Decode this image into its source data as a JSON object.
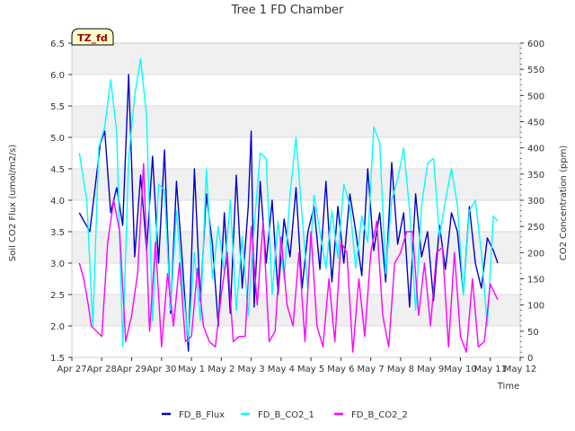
{
  "chart_data": {
    "type": "line",
    "title": "Tree 1 FD Chamber",
    "xlabel": "Time",
    "ylabel": "Soil CO2 Flux (umol/m2/s)",
    "y2label": "CO2 Concentration (ppm)",
    "site_label": "TZ_fd",
    "xlim": [
      0,
      15
    ],
    "ylim": [
      1.5,
      6.5
    ],
    "y2lim": [
      0,
      600
    ],
    "x_ticks": [
      {
        "value": 0,
        "label": "Apr 27"
      },
      {
        "value": 1,
        "label": "Apr 28"
      },
      {
        "value": 2,
        "label": "Apr 29"
      },
      {
        "value": 3,
        "label": "Apr 30"
      },
      {
        "value": 4,
        "label": "May 1"
      },
      {
        "value": 5,
        "label": "May 2"
      },
      {
        "value": 6,
        "label": "May 3"
      },
      {
        "value": 7,
        "label": "May 4"
      },
      {
        "value": 8,
        "label": "May 5"
      },
      {
        "value": 9,
        "label": "May 6"
      },
      {
        "value": 10,
        "label": "May 7"
      },
      {
        "value": 11,
        "label": "May 8"
      },
      {
        "value": 12,
        "label": "May 9"
      },
      {
        "value": 13,
        "label": "May 10"
      },
      {
        "value": 14,
        "label": "May 11"
      },
      {
        "value": 15,
        "label": "May 12"
      }
    ],
    "y_ticks": [
      "1.5",
      "2.0",
      "2.5",
      "3.0",
      "3.5",
      "4.0",
      "4.5",
      "5.0",
      "5.5",
      "6.0",
      "6.5"
    ],
    "y2_ticks": [
      "0",
      "50",
      "100",
      "150",
      "200",
      "250",
      "300",
      "350",
      "400",
      "450",
      "500",
      "550",
      "600"
    ],
    "legend_position": "bottom-center",
    "series": [
      {
        "name": "FD_B_Flux",
        "axis": "left",
        "color": "#0000cc",
        "x": [
          0.25,
          0.6,
          0.75,
          0.95,
          1.1,
          1.3,
          1.5,
          1.7,
          1.9,
          2.1,
          2.3,
          2.5,
          2.7,
          2.9,
          3.1,
          3.3,
          3.5,
          3.7,
          3.9,
          4.1,
          4.3,
          4.5,
          4.7,
          4.9,
          5.1,
          5.3,
          5.5,
          5.7,
          5.9,
          6.0,
          6.1,
          6.3,
          6.5,
          6.7,
          6.9,
          7.1,
          7.3,
          7.5,
          7.7,
          7.9,
          8.1,
          8.3,
          8.5,
          8.7,
          8.9,
          9.1,
          9.3,
          9.5,
          9.7,
          9.9,
          10.1,
          10.3,
          10.5,
          10.7,
          10.9,
          11.1,
          11.3,
          11.5,
          11.7,
          11.9,
          12.1,
          12.3,
          12.5,
          12.7,
          12.9,
          13.1,
          13.3,
          13.5,
          13.7,
          13.9,
          14.1,
          14.25
        ],
        "values": [
          3.8,
          3.5,
          4.1,
          4.9,
          5.1,
          3.8,
          4.2,
          3.6,
          6.0,
          3.1,
          4.4,
          3.2,
          4.7,
          3.0,
          4.8,
          2.2,
          4.3,
          3.0,
          1.6,
          4.5,
          2.4,
          4.1,
          3.3,
          2.0,
          3.8,
          2.2,
          4.4,
          2.6,
          3.9,
          5.1,
          2.3,
          4.3,
          3.0,
          4.0,
          2.5,
          3.7,
          3.1,
          4.2,
          2.6,
          3.5,
          3.9,
          2.9,
          4.3,
          2.7,
          3.9,
          3.0,
          4.1,
          3.5,
          2.8,
          4.5,
          3.2,
          3.8,
          2.7,
          4.6,
          3.3,
          3.8,
          2.3,
          4.1,
          3.1,
          3.5,
          2.4,
          3.6,
          2.9,
          3.8,
          3.5,
          2.5,
          3.9,
          3.0,
          2.6,
          3.4,
          3.2,
          3.0
        ]
      },
      {
        "name": "FD_B_CO2_1",
        "axis": "right",
        "color": "#00ffff",
        "x": [
          0.25,
          0.5,
          0.7,
          0.9,
          1.1,
          1.3,
          1.5,
          1.7,
          1.9,
          2.1,
          2.3,
          2.5,
          2.7,
          2.9,
          3.1,
          3.3,
          3.5,
          3.7,
          3.9,
          4.1,
          4.3,
          4.5,
          4.7,
          4.9,
          5.1,
          5.3,
          5.5,
          5.7,
          5.9,
          6.1,
          6.3,
          6.5,
          6.7,
          6.9,
          7.1,
          7.3,
          7.5,
          7.7,
          7.9,
          8.1,
          8.3,
          8.5,
          8.7,
          8.9,
          9.1,
          9.3,
          9.5,
          9.7,
          9.9,
          10.1,
          10.3,
          10.5,
          10.7,
          10.9,
          11.1,
          11.3,
          11.5,
          11.7,
          11.9,
          12.1,
          12.3,
          12.5,
          12.7,
          12.9,
          13.1,
          13.3,
          13.5,
          13.7,
          13.9,
          14.1,
          14.25
        ],
        "values": [
          390,
          300,
          60,
          400,
          440,
          530,
          430,
          20,
          380,
          500,
          570,
          460,
          70,
          330,
          320,
          90,
          280,
          140,
          30,
          200,
          70,
          360,
          150,
          250,
          160,
          300,
          90,
          230,
          80,
          250,
          390,
          380,
          120,
          260,
          150,
          310,
          420,
          270,
          130,
          310,
          240,
          170,
          280,
          190,
          330,
          290,
          170,
          270,
          220,
          440,
          410,
          160,
          300,
          340,
          400,
          280,
          90,
          290,
          370,
          380,
          230,
          300,
          360,
          290,
          120,
          280,
          300,
          200,
          60,
          270,
          260
        ]
      },
      {
        "name": "FD_B_CO2_2",
        "axis": "right",
        "color": "#ff00ff",
        "x": [
          0.25,
          0.4,
          0.55,
          0.65,
          1.0,
          1.2,
          1.4,
          1.6,
          1.8,
          2.0,
          2.2,
          2.4,
          2.6,
          2.8,
          3.0,
          3.2,
          3.4,
          3.6,
          3.8,
          4.0,
          4.2,
          4.4,
          4.6,
          4.8,
          5.0,
          5.2,
          5.4,
          5.6,
          5.8,
          6.0,
          6.2,
          6.4,
          6.6,
          6.8,
          7.0,
          7.2,
          7.4,
          7.6,
          7.8,
          8.0,
          8.2,
          8.4,
          8.6,
          8.8,
          9.0,
          9.2,
          9.4,
          9.6,
          9.8,
          10.0,
          10.2,
          10.4,
          10.6,
          10.8,
          11.0,
          11.2,
          11.4,
          11.6,
          11.8,
          12.0,
          12.2,
          12.4,
          12.6,
          12.8,
          13.0,
          13.2,
          13.4,
          13.6,
          13.8,
          14.0,
          14.25
        ],
        "values": [
          180,
          150,
          100,
          60,
          40,
          220,
          300,
          240,
          30,
          80,
          160,
          370,
          50,
          220,
          20,
          160,
          60,
          180,
          30,
          40,
          170,
          60,
          30,
          20,
          120,
          200,
          30,
          40,
          40,
          250,
          100,
          260,
          30,
          50,
          230,
          100,
          60,
          200,
          30,
          240,
          60,
          20,
          150,
          30,
          220,
          200,
          10,
          150,
          40,
          200,
          260,
          80,
          20,
          180,
          200,
          240,
          240,
          80,
          180,
          60,
          200,
          210,
          20,
          200,
          40,
          10,
          150,
          20,
          30,
          140,
          110
        ]
      }
    ]
  }
}
